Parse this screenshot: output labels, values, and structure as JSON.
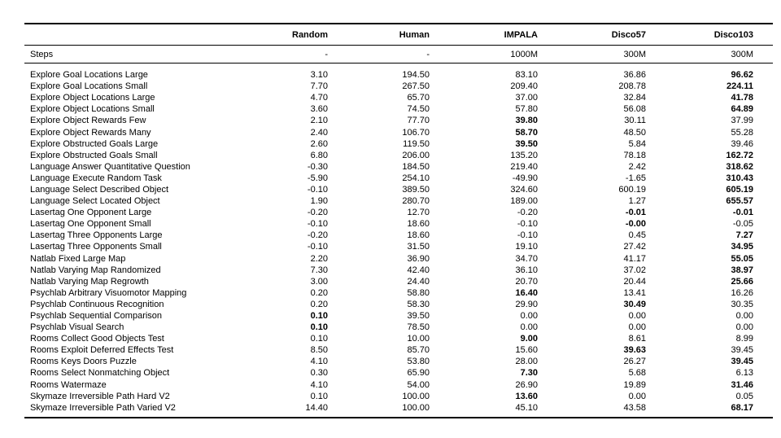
{
  "colors": {
    "background": "#ffffff",
    "text": "#000000",
    "rule": "#000000"
  },
  "table": {
    "columns": [
      "Random",
      "Human",
      "IMPALA",
      "Disco57",
      "Disco103"
    ],
    "steps_label": "Steps",
    "steps_values": [
      "-",
      "-",
      "1000M",
      "300M",
      "300M"
    ],
    "rows": [
      {
        "task": "Explore Goal Locations Large",
        "values": [
          "3.10",
          "194.50",
          "83.10",
          "36.86",
          "96.62"
        ],
        "bold": [
          false,
          false,
          false,
          false,
          true
        ]
      },
      {
        "task": "Explore Goal Locations Small",
        "values": [
          "7.70",
          "267.50",
          "209.40",
          "208.78",
          "224.11"
        ],
        "bold": [
          false,
          false,
          false,
          false,
          true
        ]
      },
      {
        "task": "Explore Object Locations Large",
        "values": [
          "4.70",
          "65.70",
          "37.00",
          "32.84",
          "41.78"
        ],
        "bold": [
          false,
          false,
          false,
          false,
          true
        ]
      },
      {
        "task": "Explore Object Locations Small",
        "values": [
          "3.60",
          "74.50",
          "57.80",
          "56.08",
          "64.89"
        ],
        "bold": [
          false,
          false,
          false,
          false,
          true
        ]
      },
      {
        "task": "Explore Object Rewards Few",
        "values": [
          "2.10",
          "77.70",
          "39.80",
          "30.11",
          "37.99"
        ],
        "bold": [
          false,
          false,
          true,
          false,
          false
        ]
      },
      {
        "task": "Explore Object Rewards Many",
        "values": [
          "2.40",
          "106.70",
          "58.70",
          "48.50",
          "55.28"
        ],
        "bold": [
          false,
          false,
          true,
          false,
          false
        ]
      },
      {
        "task": "Explore Obstructed Goals Large",
        "values": [
          "2.60",
          "119.50",
          "39.50",
          "5.84",
          "39.46"
        ],
        "bold": [
          false,
          false,
          true,
          false,
          false
        ]
      },
      {
        "task": "Explore Obstructed Goals Small",
        "values": [
          "6.80",
          "206.00",
          "135.20",
          "78.18",
          "162.72"
        ],
        "bold": [
          false,
          false,
          false,
          false,
          true
        ]
      },
      {
        "task": "Language Answer Quantitative Question",
        "values": [
          "-0.30",
          "184.50",
          "219.40",
          "2.42",
          "318.62"
        ],
        "bold": [
          false,
          false,
          false,
          false,
          true
        ]
      },
      {
        "task": "Language Execute Random Task",
        "values": [
          "-5.90",
          "254.10",
          "-49.90",
          "-1.65",
          "310.43"
        ],
        "bold": [
          false,
          false,
          false,
          false,
          true
        ]
      },
      {
        "task": "Language Select Described Object",
        "values": [
          "-0.10",
          "389.50",
          "324.60",
          "600.19",
          "605.19"
        ],
        "bold": [
          false,
          false,
          false,
          false,
          true
        ]
      },
      {
        "task": "Language Select Located Object",
        "values": [
          "1.90",
          "280.70",
          "189.00",
          "1.27",
          "655.57"
        ],
        "bold": [
          false,
          false,
          false,
          false,
          true
        ]
      },
      {
        "task": "Lasertag One Opponent Large",
        "values": [
          "-0.20",
          "12.70",
          "-0.20",
          "-0.01",
          "-0.01"
        ],
        "bold": [
          false,
          false,
          false,
          true,
          true
        ]
      },
      {
        "task": "Lasertag One Opponent Small",
        "values": [
          "-0.10",
          "18.60",
          "-0.10",
          "-0.00",
          "-0.05"
        ],
        "bold": [
          false,
          false,
          false,
          true,
          false
        ]
      },
      {
        "task": "Lasertag Three Opponents Large",
        "values": [
          "-0.20",
          "18.60",
          "-0.10",
          "0.45",
          "7.27"
        ],
        "bold": [
          false,
          false,
          false,
          false,
          true
        ]
      },
      {
        "task": "Lasertag Three Opponents Small",
        "values": [
          "-0.10",
          "31.50",
          "19.10",
          "27.42",
          "34.95"
        ],
        "bold": [
          false,
          false,
          false,
          false,
          true
        ]
      },
      {
        "task": "Natlab Fixed Large Map",
        "values": [
          "2.20",
          "36.90",
          "34.70",
          "41.17",
          "55.05"
        ],
        "bold": [
          false,
          false,
          false,
          false,
          true
        ]
      },
      {
        "task": "Natlab Varying Map Randomized",
        "values": [
          "7.30",
          "42.40",
          "36.10",
          "37.02",
          "38.97"
        ],
        "bold": [
          false,
          false,
          false,
          false,
          true
        ]
      },
      {
        "task": "Natlab Varying Map Regrowth",
        "values": [
          "3.00",
          "24.40",
          "20.70",
          "20.44",
          "25.66"
        ],
        "bold": [
          false,
          false,
          false,
          false,
          true
        ]
      },
      {
        "task": "Psychlab Arbitrary Visuomotor Mapping",
        "values": [
          "0.20",
          "58.80",
          "16.40",
          "13.41",
          "16.26"
        ],
        "bold": [
          false,
          false,
          true,
          false,
          false
        ]
      },
      {
        "task": "Psychlab Continuous Recognition",
        "values": [
          "0.20",
          "58.30",
          "29.90",
          "30.49",
          "30.35"
        ],
        "bold": [
          false,
          false,
          false,
          true,
          false
        ]
      },
      {
        "task": "Psychlab Sequential Comparison",
        "values": [
          "0.10",
          "39.50",
          "0.00",
          "0.00",
          "0.00"
        ],
        "bold": [
          true,
          false,
          false,
          false,
          false
        ]
      },
      {
        "task": "Psychlab Visual Search",
        "values": [
          "0.10",
          "78.50",
          "0.00",
          "0.00",
          "0.00"
        ],
        "bold": [
          true,
          false,
          false,
          false,
          false
        ]
      },
      {
        "task": "Rooms Collect Good Objects Test",
        "values": [
          "0.10",
          "10.00",
          "9.00",
          "8.61",
          "8.99"
        ],
        "bold": [
          false,
          false,
          true,
          false,
          false
        ]
      },
      {
        "task": "Rooms Exploit Deferred Effects Test",
        "values": [
          "8.50",
          "85.70",
          "15.60",
          "39.63",
          "39.45"
        ],
        "bold": [
          false,
          false,
          false,
          true,
          false
        ]
      },
      {
        "task": "Rooms Keys Doors Puzzle",
        "values": [
          "4.10",
          "53.80",
          "28.00",
          "26.27",
          "39.45"
        ],
        "bold": [
          false,
          false,
          false,
          false,
          true
        ]
      },
      {
        "task": "Rooms Select Nonmatching Object",
        "values": [
          "0.30",
          "65.90",
          "7.30",
          "5.68",
          "6.13"
        ],
        "bold": [
          false,
          false,
          true,
          false,
          false
        ]
      },
      {
        "task": "Rooms Watermaze",
        "values": [
          "4.10",
          "54.00",
          "26.90",
          "19.89",
          "31.46"
        ],
        "bold": [
          false,
          false,
          false,
          false,
          true
        ]
      },
      {
        "task": "Skymaze Irreversible Path Hard V2",
        "values": [
          "0.10",
          "100.00",
          "13.60",
          "0.00",
          "0.05"
        ],
        "bold": [
          false,
          false,
          true,
          false,
          false
        ]
      },
      {
        "task": "Skymaze Irreversible Path Varied V2",
        "values": [
          "14.40",
          "100.00",
          "45.10",
          "43.58",
          "68.17"
        ],
        "bold": [
          false,
          false,
          false,
          false,
          true
        ]
      }
    ]
  }
}
